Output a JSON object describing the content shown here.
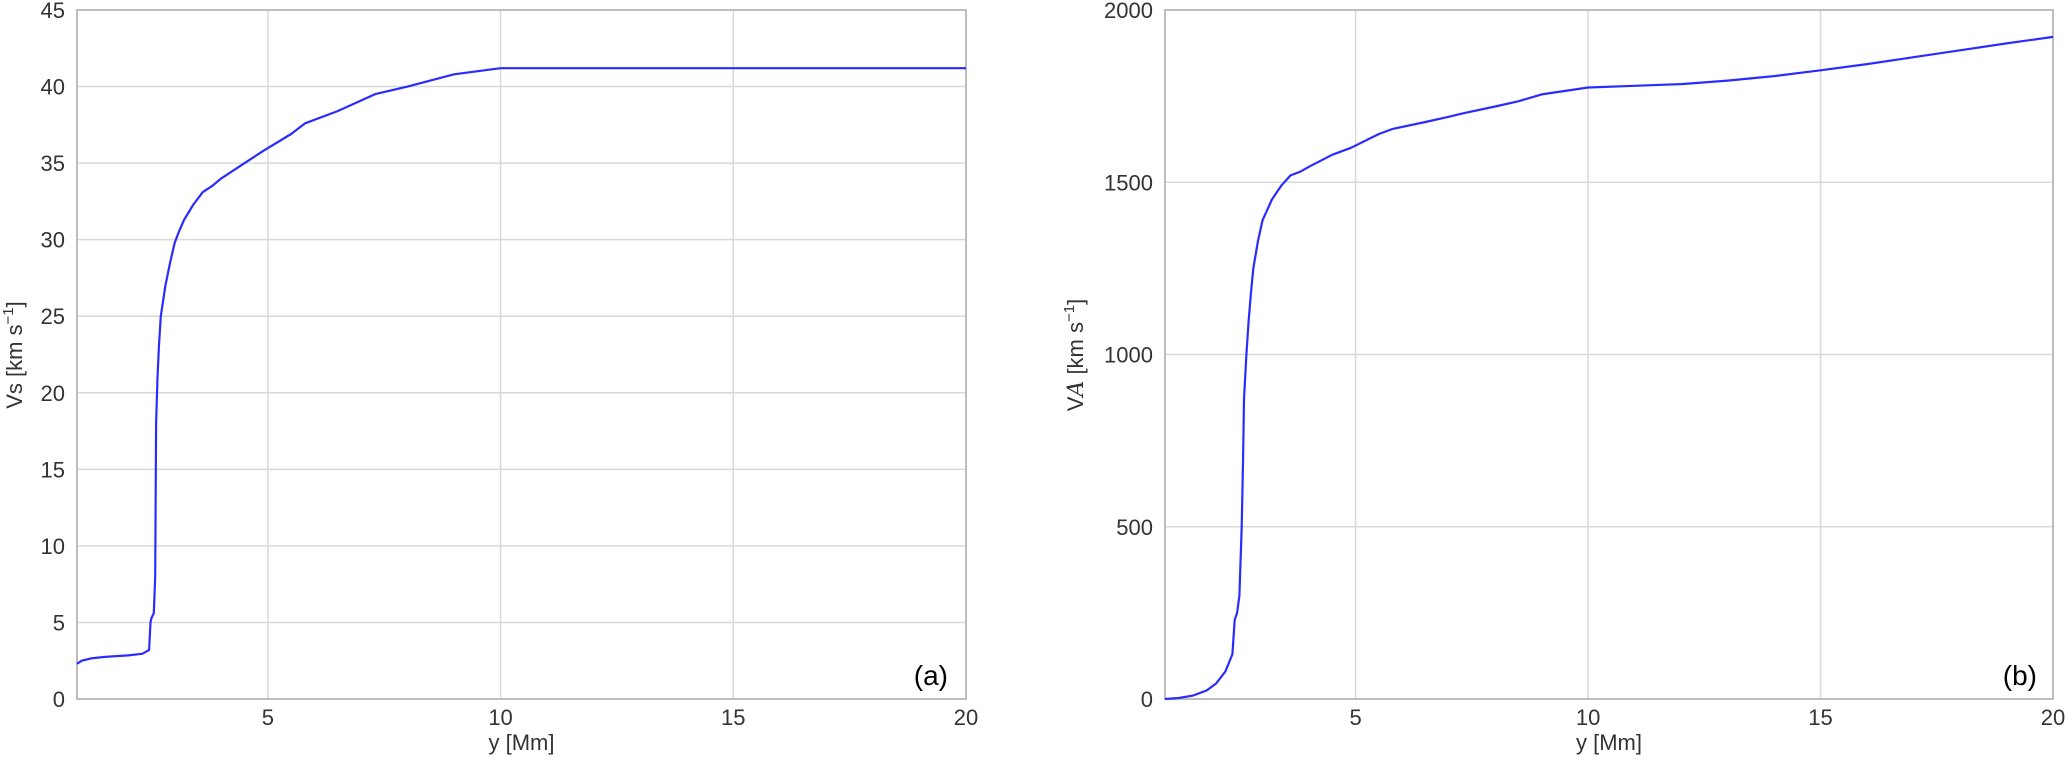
{
  "colors": {
    "series": "#2b2bff"
  },
  "chart_data": [
    {
      "type": "line",
      "xlabel": "y [Mm]",
      "ylabel": "Vs [km s^-1]",
      "ylabel_parts": {
        "main": "Vs [km s",
        "sup": "−1",
        "end": "]"
      },
      "panel_label": "(a)",
      "xlim": [
        0.9,
        20
      ],
      "ylim": [
        0,
        45
      ],
      "xticks": [
        5,
        10,
        15,
        20
      ],
      "yticks": [
        0,
        5,
        10,
        15,
        20,
        25,
        30,
        35,
        40,
        45
      ],
      "grid": true,
      "series": [
        {
          "x": [
            0.9,
            1.0,
            1.2,
            1.5,
            2.0,
            2.3,
            2.45,
            2.48,
            2.5,
            2.55,
            2.58,
            2.6,
            2.63,
            2.66,
            2.7,
            2.75,
            2.8,
            2.9,
            3.0,
            3.1,
            3.2,
            3.4,
            3.6,
            3.8,
            4.0,
            4.5,
            4.9,
            5.5,
            5.8,
            6.5,
            7.3,
            8.0,
            9.0,
            10.0,
            12.0,
            15.0,
            17.5,
            20.0
          ],
          "y": [
            2.3,
            2.5,
            2.65,
            2.75,
            2.85,
            2.95,
            3.2,
            5.0,
            5.3,
            5.6,
            8.0,
            18.0,
            21.0,
            23.0,
            25.0,
            26.0,
            27.0,
            28.5,
            29.8,
            30.6,
            31.3,
            32.3,
            33.1,
            33.5,
            34.0,
            35.0,
            35.8,
            36.9,
            37.6,
            38.4,
            39.5,
            40.0,
            40.8,
            41.2,
            41.2,
            41.2,
            41.2,
            41.2
          ]
        }
      ]
    },
    {
      "type": "line",
      "xlabel": "y [Mm]",
      "ylabel": "VA [km s^-1]",
      "ylabel_parts": {
        "main": "V",
        "italic": "A",
        "rest": " [km s",
        "sup": "−1",
        "end": "]"
      },
      "panel_label": "(b)",
      "xlim": [
        0.9,
        20
      ],
      "ylim": [
        0,
        2000
      ],
      "xticks": [
        5,
        10,
        15,
        20
      ],
      "yticks": [
        0,
        500,
        1000,
        1500,
        2000
      ],
      "grid": true,
      "series": [
        {
          "x": [
            0.9,
            1.2,
            1.5,
            1.8,
            2.0,
            2.2,
            2.35,
            2.4,
            2.45,
            2.5,
            2.55,
            2.58,
            2.6,
            2.65,
            2.7,
            2.75,
            2.8,
            2.9,
            3.0,
            3.1,
            3.2,
            3.4,
            3.6,
            3.8,
            4.0,
            4.5,
            4.9,
            5.5,
            5.8,
            6.5,
            7.0,
            7.3,
            8.0,
            8.5,
            9.0,
            10.0,
            11.0,
            12.0,
            13.0,
            14.0,
            15.0,
            16.0,
            17.0,
            18.0,
            19.0,
            20.0
          ],
          "y": [
            0,
            3,
            10,
            25,
            45,
            80,
            130,
            230,
            250,
            300,
            500,
            700,
            870,
            1000,
            1100,
            1180,
            1250,
            1330,
            1390,
            1420,
            1450,
            1490,
            1520,
            1530,
            1545,
            1580,
            1600,
            1640,
            1655,
            1675,
            1690,
            1700,
            1720,
            1735,
            1755,
            1775,
            1780,
            1785,
            1795,
            1808,
            1825,
            1843,
            1863,
            1883,
            1903,
            1922
          ]
        }
      ]
    }
  ]
}
